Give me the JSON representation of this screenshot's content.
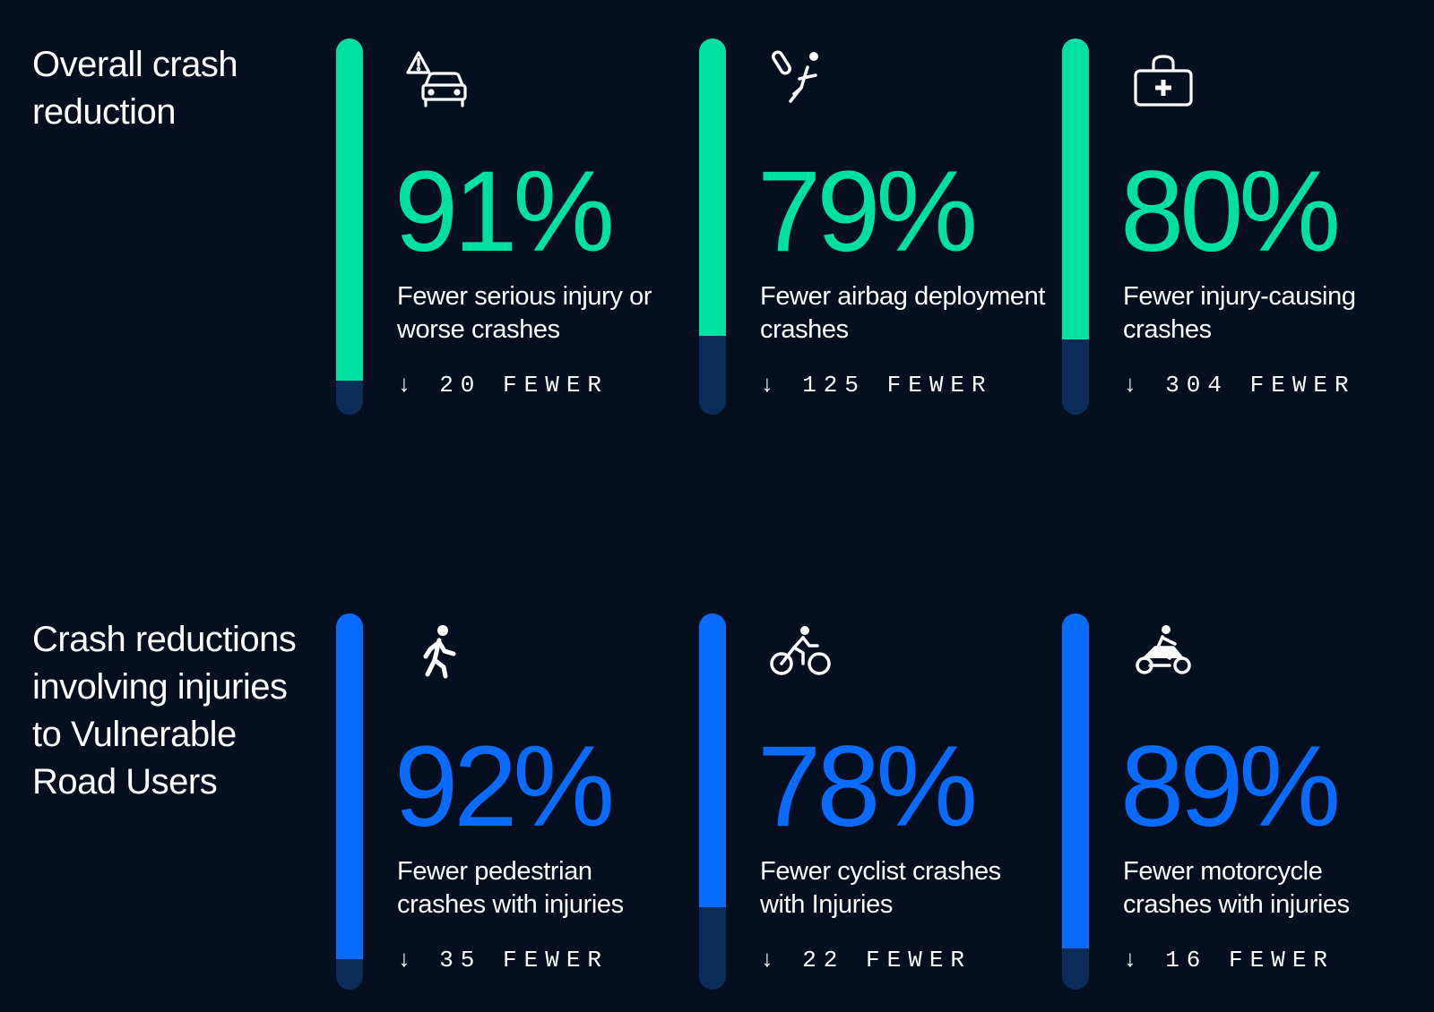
{
  "colors": {
    "background": "#050f1f",
    "green": "#00e0a0",
    "blue": "#0a6cff",
    "track": "#0c2c5a"
  },
  "chart_data": [
    {
      "type": "bar",
      "title": "Overall crash reduction",
      "accent": "green",
      "unit": "%",
      "ylim": [
        0,
        100
      ],
      "items": [
        {
          "icon": "car-warning-icon",
          "value": 91,
          "percent_label": "91%",
          "description": "Fewer serious injury or worse crashes",
          "fewer_label": "↓ 20 FEWER"
        },
        {
          "icon": "airbag-icon",
          "value": 79,
          "percent_label": "79%",
          "description": "Fewer airbag deployment crashes",
          "fewer_label": "↓ 125 FEWER"
        },
        {
          "icon": "medical-kit-icon",
          "value": 80,
          "percent_label": "80%",
          "description": "Fewer injury-causing crashes",
          "fewer_label": "↓ 304 FEWER"
        }
      ]
    },
    {
      "type": "bar",
      "title": "Crash reductions involving injuries to Vulnerable Road Users",
      "accent": "blue",
      "unit": "%",
      "ylim": [
        0,
        100
      ],
      "items": [
        {
          "icon": "pedestrian-icon",
          "value": 92,
          "percent_label": "92%",
          "description": "Fewer pedestrian crashes with injuries",
          "fewer_label": "↓ 35 FEWER"
        },
        {
          "icon": "cyclist-icon",
          "value": 78,
          "percent_label": "78%",
          "description": "Fewer cyclist crashes with Injuries",
          "fewer_label": "↓ 22 FEWER"
        },
        {
          "icon": "motorcycle-icon",
          "value": 89,
          "percent_label": "89%",
          "description": "Fewer motorcycle crashes with injuries",
          "fewer_label": "↓ 16 FEWER"
        }
      ]
    }
  ]
}
